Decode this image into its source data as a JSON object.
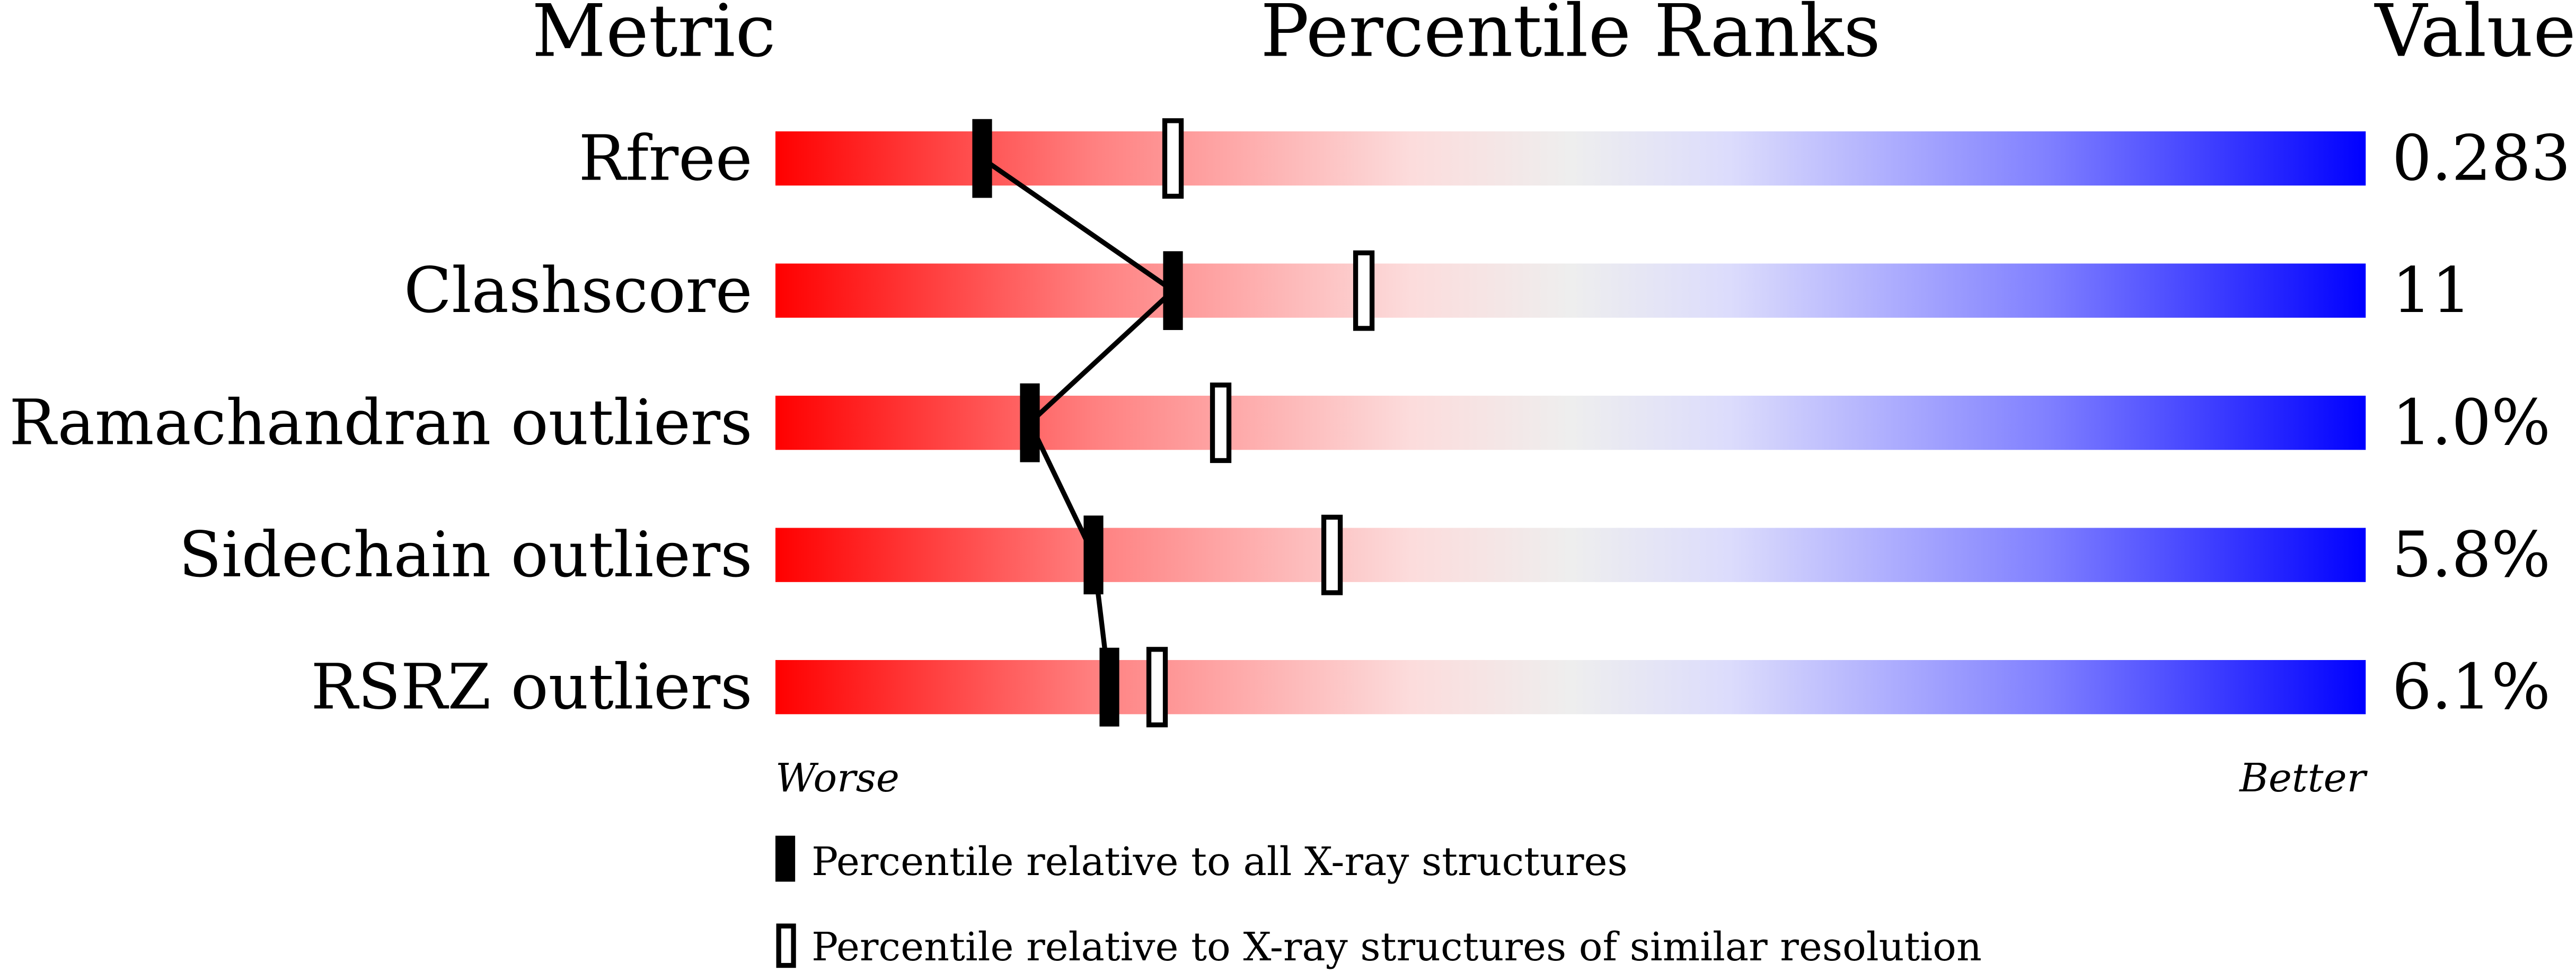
{
  "chart_data": {
    "type": "bar",
    "headers": {
      "metric": "Metric",
      "ranks": "Percentile Ranks",
      "value": "Value"
    },
    "xlim": [
      0,
      100
    ],
    "metrics": [
      {
        "name": "Rfree",
        "value": "0.283",
        "percentile_all": 13,
        "percentile_similar": 25
      },
      {
        "name": "Clashscore",
        "value": "11",
        "percentile_all": 25,
        "percentile_similar": 37
      },
      {
        "name": "Ramachandran outliers",
        "value": "1.0%",
        "percentile_all": 16,
        "percentile_similar": 28
      },
      {
        "name": "Sidechain outliers",
        "value": "5.8%",
        "percentile_all": 20,
        "percentile_similar": 35
      },
      {
        "name": "RSRZ outliers",
        "value": "6.1%",
        "percentile_all": 21,
        "percentile_similar": 24
      }
    ],
    "axis_labels": {
      "worse": "Worse",
      "better": "Better"
    },
    "legend": {
      "all": "Percentile relative to all X-ray structures",
      "similar": "Percentile relative to X-ray structures of similar resolution"
    },
    "colors": {
      "worse": "#ff0000",
      "mid": "#eeeeee",
      "better": "#0000ff"
    }
  }
}
